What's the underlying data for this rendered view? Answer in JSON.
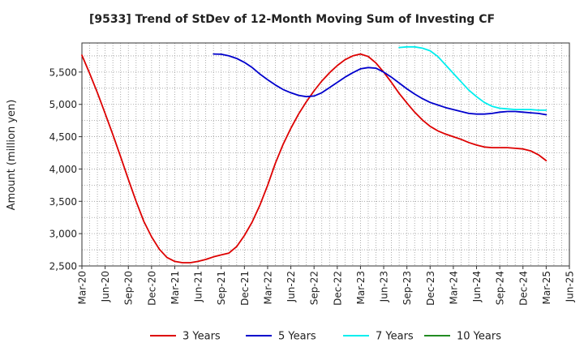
{
  "chart_data": {
    "type": "line",
    "title": "[9533]  Trend of StDev of 12-Month Moving Sum of Investing CF",
    "ylabel": "Amount (million yen)",
    "xlabel": "",
    "ylim": [
      2500,
      5950
    ],
    "yticks": [
      2500,
      3000,
      3500,
      4000,
      4500,
      5000,
      5500
    ],
    "ytick_labels": [
      "2,500",
      "3,000",
      "3,500",
      "4,000",
      "4,500",
      "5,000",
      "5,500"
    ],
    "xticks": [
      "Mar-20",
      "Jun-20",
      "Sep-20",
      "Dec-20",
      "Mar-21",
      "Jun-21",
      "Sep-21",
      "Dec-21",
      "Mar-22",
      "Jun-22",
      "Sep-22",
      "Dec-22",
      "Mar-23",
      "Jun-23",
      "Sep-23",
      "Dec-23",
      "Mar-24",
      "Jun-24",
      "Sep-24",
      "Dec-24",
      "Mar-25",
      "Jun-25"
    ],
    "grid": true,
    "legend_position": "bottom",
    "series": [
      {
        "name": "3 Years",
        "color": "#dd0000",
        "values": [
          [
            "Mar-20",
            5760
          ],
          [
            "Apr-20",
            5480
          ],
          [
            "May-20",
            5180
          ],
          [
            "Jun-20",
            4860
          ],
          [
            "Jul-20",
            4530
          ],
          [
            "Aug-20",
            4190
          ],
          [
            "Sep-20",
            3840
          ],
          [
            "Oct-20",
            3500
          ],
          [
            "Nov-20",
            3190
          ],
          [
            "Dec-20",
            2950
          ],
          [
            "Jan-21",
            2760
          ],
          [
            "Feb-21",
            2630
          ],
          [
            "Mar-21",
            2570
          ],
          [
            "Apr-21",
            2550
          ],
          [
            "May-21",
            2550
          ],
          [
            "Jun-21",
            2570
          ],
          [
            "Jul-21",
            2600
          ],
          [
            "Aug-21",
            2640
          ],
          [
            "Sep-21",
            2670
          ],
          [
            "Oct-21",
            2700
          ],
          [
            "Nov-21",
            2800
          ],
          [
            "Dec-21",
            2970
          ],
          [
            "Jan-22",
            3180
          ],
          [
            "Feb-22",
            3440
          ],
          [
            "Mar-22",
            3750
          ],
          [
            "Apr-22",
            4090
          ],
          [
            "May-22",
            4380
          ],
          [
            "Jun-22",
            4630
          ],
          [
            "Jul-22",
            4850
          ],
          [
            "Aug-22",
            5040
          ],
          [
            "Sep-22",
            5210
          ],
          [
            "Oct-22",
            5360
          ],
          [
            "Nov-22",
            5490
          ],
          [
            "Dec-22",
            5600
          ],
          [
            "Jan-23",
            5690
          ],
          [
            "Feb-23",
            5750
          ],
          [
            "Mar-23",
            5780
          ],
          [
            "Apr-23",
            5740
          ],
          [
            "May-23",
            5640
          ],
          [
            "Jun-23",
            5500
          ],
          [
            "Jul-23",
            5340
          ],
          [
            "Aug-23",
            5170
          ],
          [
            "Sep-23",
            5020
          ],
          [
            "Oct-23",
            4880
          ],
          [
            "Nov-23",
            4760
          ],
          [
            "Dec-23",
            4660
          ],
          [
            "Jan-24",
            4590
          ],
          [
            "Feb-24",
            4540
          ],
          [
            "Mar-24",
            4500
          ],
          [
            "Apr-24",
            4460
          ],
          [
            "May-24",
            4410
          ],
          [
            "Jun-24",
            4370
          ],
          [
            "Jul-24",
            4340
          ],
          [
            "Aug-24",
            4330
          ],
          [
            "Sep-24",
            4330
          ],
          [
            "Oct-24",
            4330
          ],
          [
            "Nov-24",
            4320
          ],
          [
            "Dec-24",
            4310
          ],
          [
            "Jan-25",
            4280
          ],
          [
            "Feb-25",
            4220
          ],
          [
            "Mar-25",
            4130
          ]
        ]
      },
      {
        "name": "5 Years",
        "color": "#0000cc",
        "values": [
          [
            "Aug-21",
            5780
          ],
          [
            "Sep-21",
            5775
          ],
          [
            "Oct-21",
            5750
          ],
          [
            "Nov-21",
            5710
          ],
          [
            "Dec-21",
            5650
          ],
          [
            "Jan-22",
            5570
          ],
          [
            "Feb-22",
            5470
          ],
          [
            "Mar-22",
            5380
          ],
          [
            "Apr-22",
            5300
          ],
          [
            "May-22",
            5230
          ],
          [
            "Jun-22",
            5180
          ],
          [
            "Jul-22",
            5140
          ],
          [
            "Aug-22",
            5120
          ],
          [
            "Sep-22",
            5130
          ],
          [
            "Oct-22",
            5180
          ],
          [
            "Nov-22",
            5260
          ],
          [
            "Dec-22",
            5340
          ],
          [
            "Jan-23",
            5420
          ],
          [
            "Feb-23",
            5490
          ],
          [
            "Mar-23",
            5550
          ],
          [
            "Apr-23",
            5570
          ],
          [
            "May-23",
            5560
          ],
          [
            "Jun-23",
            5500
          ],
          [
            "Jul-23",
            5420
          ],
          [
            "Aug-23",
            5330
          ],
          [
            "Sep-23",
            5240
          ],
          [
            "Oct-23",
            5160
          ],
          [
            "Nov-23",
            5090
          ],
          [
            "Dec-23",
            5030
          ],
          [
            "Jan-24",
            4990
          ],
          [
            "Feb-24",
            4950
          ],
          [
            "Mar-24",
            4920
          ],
          [
            "Apr-24",
            4890
          ],
          [
            "May-24",
            4860
          ],
          [
            "Jun-24",
            4850
          ],
          [
            "Jul-24",
            4850
          ],
          [
            "Aug-24",
            4860
          ],
          [
            "Sep-24",
            4880
          ],
          [
            "Oct-24",
            4890
          ],
          [
            "Nov-24",
            4890
          ],
          [
            "Dec-24",
            4880
          ],
          [
            "Jan-25",
            4870
          ],
          [
            "Feb-25",
            4860
          ],
          [
            "Mar-25",
            4840
          ]
        ]
      },
      {
        "name": "7 Years",
        "color": "#00eeee",
        "values": [
          [
            "Aug-23",
            5880
          ],
          [
            "Sep-23",
            5890
          ],
          [
            "Oct-23",
            5890
          ],
          [
            "Nov-23",
            5870
          ],
          [
            "Dec-23",
            5830
          ],
          [
            "Jan-24",
            5740
          ],
          [
            "Feb-24",
            5610
          ],
          [
            "Mar-24",
            5480
          ],
          [
            "Apr-24",
            5350
          ],
          [
            "May-24",
            5220
          ],
          [
            "Jun-24",
            5120
          ],
          [
            "Jul-24",
            5030
          ],
          [
            "Aug-24",
            4970
          ],
          [
            "Sep-24",
            4940
          ],
          [
            "Oct-24",
            4930
          ],
          [
            "Nov-24",
            4920
          ],
          [
            "Dec-24",
            4920
          ],
          [
            "Jan-25",
            4920
          ],
          [
            "Feb-25",
            4910
          ],
          [
            "Mar-25",
            4910
          ]
        ]
      },
      {
        "name": "10 Years",
        "color": "#228b22",
        "values": []
      }
    ]
  }
}
